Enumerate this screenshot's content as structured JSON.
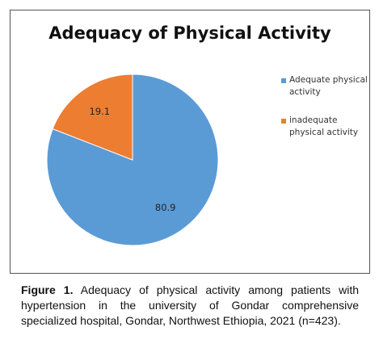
{
  "chart_data": {
    "type": "pie",
    "title": "Adequacy of Physical Activity",
    "categories": [
      "Adequate physical activity",
      "inadequate physical activity"
    ],
    "values": [
      80.9,
      19.1
    ],
    "colors": [
      "#5b9bd5",
      "#ed7d31"
    ],
    "legend": "right"
  },
  "caption": {
    "label": "Figure 1.",
    "text": "Adequacy of physical activity among patients with hypertension in the university of Gondar comprehensive specialized hospital, Gondar, Northwest Ethiopia, 2021 (n=423)."
  }
}
